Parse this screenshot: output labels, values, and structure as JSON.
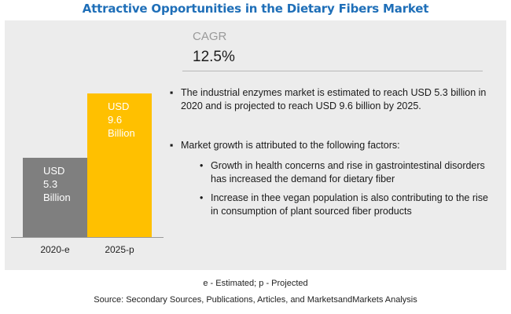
{
  "title": "Attractive Opportunities in the Dietary Fibers Market",
  "cagr": {
    "label": "CAGR",
    "value": "12.5%"
  },
  "chart_data": {
    "type": "bar",
    "categories": [
      "2020-e",
      "2025-p"
    ],
    "values": [
      5.3,
      9.6
    ],
    "series_labels": [
      [
        "USD",
        "5.3",
        "Billion"
      ],
      [
        "USD",
        "9.6",
        "Billion"
      ]
    ],
    "unit": "USD Billion",
    "colors": [
      "#7f7f7f",
      "#ffc000"
    ],
    "ylim": [
      0,
      10.6
    ]
  },
  "bullets": [
    {
      "text": "The industrial enzymes market is estimated to reach USD 5.3 billion in 2020 and is projected to reach USD 9.6 billion by 2025."
    },
    {
      "text": "Market growth is attributed to the following factors:"
    }
  ],
  "sub_bullets": [
    {
      "text": "Growth in health concerns and rise in gastrointestinal disorders has increased the demand for dietary fiber"
    },
    {
      "text": "Increase in thee vegan population is also contributing to the rise in consumption of plant sourced fiber products"
    }
  ],
  "bullet_glyph": "▪",
  "footnote": "e - Estimated; p - Projected",
  "source": "Source: Secondary Sources, Publications, Articles, and MarketsandMarkets Analysis"
}
